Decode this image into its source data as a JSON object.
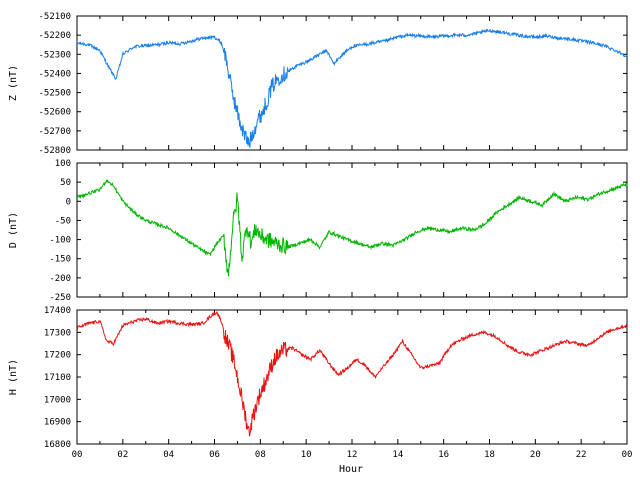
{
  "chart_data": [
    {
      "type": "line",
      "ylabel": "Z (nT)",
      "color": "#1a7fe8",
      "xlim": [
        0,
        24
      ],
      "ylim": [
        -52800,
        -52100
      ],
      "yticks": [
        -52100,
        -52200,
        -52300,
        -52400,
        -52500,
        -52600,
        -52700,
        -52800
      ],
      "series": [
        {
          "x": [
            0,
            0.5,
            1.0,
            1.4,
            1.7,
            2.0,
            2.5,
            3.0,
            3.5,
            4.0,
            4.5,
            5.0,
            5.5,
            6.0,
            6.3,
            6.5,
            6.7,
            6.9,
            7.1,
            7.3,
            7.5,
            7.7,
            7.9,
            8.1,
            8.3,
            8.5,
            8.8,
            9.2,
            9.6,
            10.0,
            10.3,
            10.6,
            10.9,
            11.2,
            11.6,
            12.0,
            12.5,
            13.0,
            13.5,
            14.0,
            14.5,
            15.0,
            15.5,
            16.0,
            16.5,
            17.0,
            17.5,
            18.0,
            18.5,
            19.0,
            19.5,
            20.0,
            20.5,
            21.0,
            21.5,
            22.0,
            22.5,
            23.0,
            23.5,
            24.0
          ],
          "y": [
            -52240,
            -52250,
            -52280,
            -52370,
            -52430,
            -52300,
            -52260,
            -52255,
            -52250,
            -52240,
            -52245,
            -52230,
            -52215,
            -52210,
            -52240,
            -52320,
            -52450,
            -52560,
            -52650,
            -52720,
            -52770,
            -52700,
            -52640,
            -52600,
            -52540,
            -52470,
            -52420,
            -52390,
            -52360,
            -52340,
            -52320,
            -52300,
            -52280,
            -52350,
            -52300,
            -52260,
            -52250,
            -52240,
            -52230,
            -52210,
            -52200,
            -52205,
            -52210,
            -52205,
            -52200,
            -52200,
            -52190,
            -52175,
            -52185,
            -52195,
            -52205,
            -52210,
            -52205,
            -52215,
            -52220,
            -52230,
            -52240,
            -52255,
            -52280,
            -52310
          ]
        }
      ]
    },
    {
      "type": "line",
      "ylabel": "D (nT)",
      "color": "#00b400",
      "xlim": [
        0,
        24
      ],
      "ylim": [
        -250,
        100
      ],
      "yticks": [
        100,
        50,
        0,
        -50,
        -100,
        -150,
        -200,
        -250
      ],
      "series": [
        {
          "x": [
            0,
            0.5,
            1.0,
            1.3,
            1.6,
            2.0,
            2.5,
            3.0,
            3.5,
            4.0,
            4.5,
            5.0,
            5.5,
            5.8,
            6.1,
            6.4,
            6.6,
            6.8,
            7.0,
            7.2,
            7.4,
            7.6,
            7.8,
            8.0,
            8.3,
            8.7,
            9.2,
            9.7,
            10.2,
            10.6,
            11.0,
            11.4,
            11.8,
            12.3,
            12.8,
            13.3,
            13.8,
            14.3,
            14.8,
            15.3,
            15.8,
            16.3,
            16.8,
            17.3,
            17.8,
            18.3,
            18.8,
            19.3,
            19.8,
            20.3,
            20.8,
            21.3,
            21.8,
            22.3,
            22.8,
            23.3,
            24.0
          ],
          "y": [
            10,
            20,
            30,
            55,
            40,
            0,
            -30,
            -50,
            -60,
            -70,
            -90,
            -110,
            -130,
            -140,
            -110,
            -90,
            -195,
            -60,
            10,
            -150,
            -60,
            -110,
            -70,
            -90,
            -100,
            -110,
            -120,
            -110,
            -100,
            -120,
            -80,
            -90,
            -100,
            -110,
            -120,
            -110,
            -115,
            -100,
            -80,
            -70,
            -75,
            -80,
            -70,
            -75,
            -60,
            -30,
            -10,
            10,
            0,
            -10,
            20,
            0,
            10,
            5,
            20,
            30,
            45
          ]
        }
      ]
    },
    {
      "type": "line",
      "ylabel": "H (nT)",
      "color": "#e81414",
      "xlabel": "Hour",
      "xlim": [
        0,
        24
      ],
      "ylim": [
        16800,
        17400
      ],
      "yticks": [
        17400,
        17300,
        17200,
        17100,
        17000,
        16900,
        16800
      ],
      "xticks": [
        "00",
        "02",
        "04",
        "06",
        "08",
        "10",
        "12",
        "14",
        "16",
        "18",
        "20",
        "22",
        "00"
      ],
      "series": [
        {
          "x": [
            0,
            0.5,
            1.0,
            1.3,
            1.6,
            2.0,
            2.5,
            3.0,
            3.5,
            4.0,
            4.5,
            5.0,
            5.5,
            5.8,
            6.1,
            6.3,
            6.5,
            6.7,
            6.9,
            7.1,
            7.3,
            7.5,
            7.7,
            7.9,
            8.1,
            8.3,
            8.6,
            9.0,
            9.4,
            9.8,
            10.2,
            10.6,
            11.0,
            11.4,
            11.8,
            12.2,
            12.6,
            13.0,
            13.4,
            13.8,
            14.2,
            14.6,
            15.0,
            15.4,
            15.8,
            16.3,
            16.8,
            17.3,
            17.8,
            18.3,
            18.8,
            19.3,
            19.8,
            20.3,
            20.8,
            21.3,
            21.8,
            22.3,
            22.8,
            23.3,
            24.0
          ],
          "y": [
            17320,
            17340,
            17350,
            17260,
            17250,
            17330,
            17350,
            17360,
            17340,
            17350,
            17340,
            17335,
            17340,
            17370,
            17390,
            17350,
            17270,
            17220,
            17150,
            17050,
            16950,
            16850,
            16930,
            17000,
            17050,
            17100,
            17180,
            17220,
            17230,
            17200,
            17180,
            17220,
            17160,
            17110,
            17140,
            17180,
            17150,
            17100,
            17150,
            17200,
            17260,
            17200,
            17140,
            17150,
            17160,
            17240,
            17270,
            17290,
            17300,
            17280,
            17240,
            17210,
            17200,
            17220,
            17240,
            17260,
            17250,
            17240,
            17280,
            17310,
            17330
          ]
        }
      ]
    }
  ]
}
